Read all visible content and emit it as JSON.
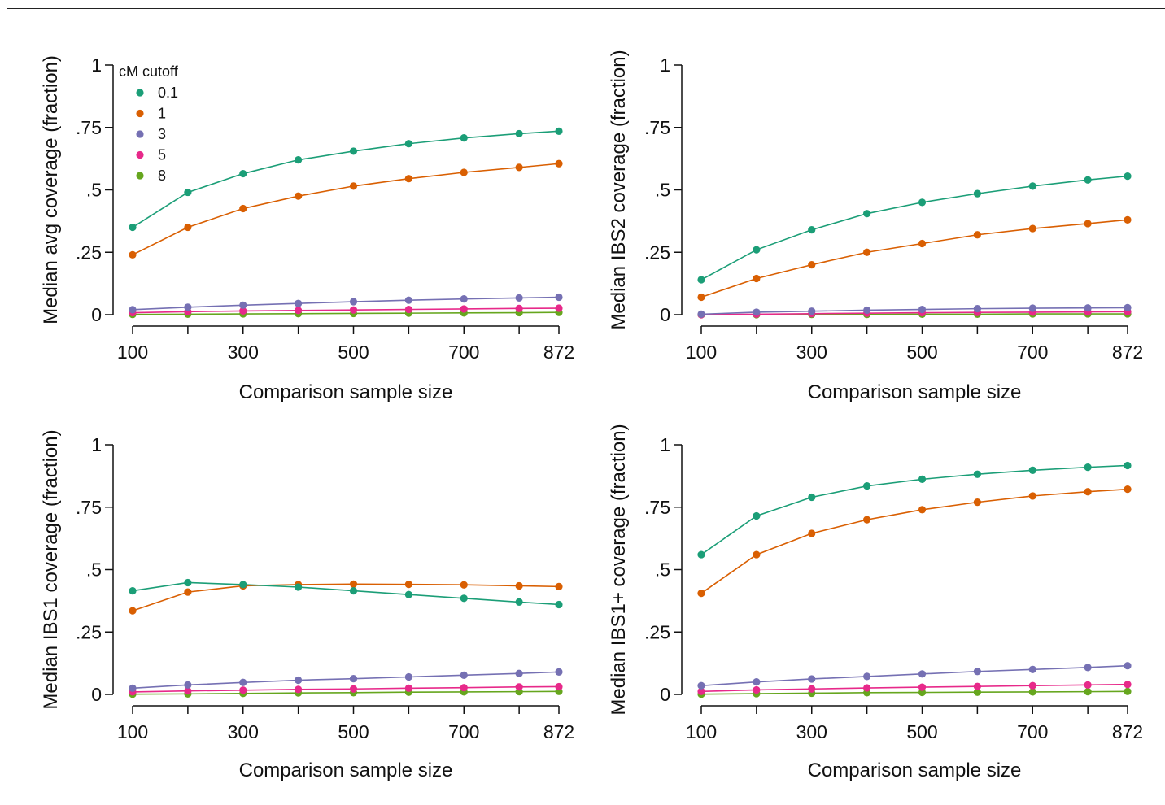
{
  "legend": {
    "title": "cM cutoff",
    "entries": [
      "0.1",
      "1",
      "3",
      "5",
      "8"
    ]
  },
  "colors": {
    "0.1": "#1b9e77",
    "1": "#d95f02",
    "3": "#7570b3",
    "5": "#e7298a",
    "8": "#66a61e"
  },
  "chart_data": [
    {
      "type": "line",
      "ylabel": "Median avg coverage (fraction)",
      "xlabel": "Comparison sample size",
      "x": [
        100,
        200,
        300,
        400,
        500,
        600,
        700,
        800,
        872
      ],
      "xticks": [
        "100",
        "300",
        "500",
        "700",
        "872"
      ],
      "yticks": [
        "0",
        ".25",
        ".5",
        ".75",
        "1"
      ],
      "ylim": [
        0,
        1
      ],
      "legend_position": "top-left",
      "series": [
        {
          "name": "0.1",
          "values": [
            0.35,
            0.49,
            0.565,
            0.62,
            0.655,
            0.685,
            0.708,
            0.725,
            0.735
          ]
        },
        {
          "name": "1",
          "values": [
            0.24,
            0.35,
            0.425,
            0.475,
            0.515,
            0.545,
            0.57,
            0.59,
            0.605
          ]
        },
        {
          "name": "3",
          "values": [
            0.02,
            0.03,
            0.038,
            0.045,
            0.052,
            0.058,
            0.063,
            0.067,
            0.07
          ]
        },
        {
          "name": "5",
          "values": [
            0.008,
            0.012,
            0.015,
            0.017,
            0.019,
            0.021,
            0.023,
            0.025,
            0.026
          ]
        },
        {
          "name": "8",
          "values": [
            0.001,
            0.002,
            0.003,
            0.004,
            0.005,
            0.006,
            0.007,
            0.008,
            0.009
          ]
        }
      ]
    },
    {
      "type": "line",
      "ylabel": "Median IBS2 coverage (fraction)",
      "xlabel": "Comparison sample size",
      "x": [
        100,
        200,
        300,
        400,
        500,
        600,
        700,
        800,
        872
      ],
      "xticks": [
        "100",
        "300",
        "500",
        "700",
        "872"
      ],
      "yticks": [
        "0",
        ".25",
        ".5",
        ".75",
        "1"
      ],
      "ylim": [
        0,
        1
      ],
      "series": [
        {
          "name": "0.1",
          "values": [
            0.14,
            0.26,
            0.34,
            0.405,
            0.45,
            0.485,
            0.515,
            0.54,
            0.555
          ]
        },
        {
          "name": "1",
          "values": [
            0.07,
            0.145,
            0.2,
            0.25,
            0.285,
            0.32,
            0.345,
            0.365,
            0.38
          ]
        },
        {
          "name": "3",
          "values": [
            0.002,
            0.01,
            0.014,
            0.018,
            0.021,
            0.024,
            0.026,
            0.027,
            0.028
          ]
        },
        {
          "name": "5",
          "values": [
            0.0,
            0.002,
            0.004,
            0.006,
            0.008,
            0.009,
            0.01,
            0.011,
            0.012
          ]
        },
        {
          "name": "8",
          "values": [
            0.0,
            0.0,
            0.001,
            0.001,
            0.002,
            0.002,
            0.003,
            0.003,
            0.003
          ]
        }
      ]
    },
    {
      "type": "line",
      "ylabel": "Median IBS1 coverage (fraction)",
      "xlabel": "Comparison sample size",
      "x": [
        100,
        200,
        300,
        400,
        500,
        600,
        700,
        800,
        872
      ],
      "xticks": [
        "100",
        "300",
        "500",
        "700",
        "872"
      ],
      "yticks": [
        "0",
        ".25",
        ".5",
        ".75",
        "1"
      ],
      "ylim": [
        0,
        1
      ],
      "series": [
        {
          "name": "0.1",
          "values": [
            0.415,
            0.448,
            0.44,
            0.43,
            0.415,
            0.4,
            0.385,
            0.37,
            0.36
          ]
        },
        {
          "name": "1",
          "values": [
            0.335,
            0.41,
            0.435,
            0.44,
            0.442,
            0.441,
            0.439,
            0.435,
            0.432
          ]
        },
        {
          "name": "3",
          "values": [
            0.025,
            0.038,
            0.048,
            0.057,
            0.063,
            0.07,
            0.077,
            0.084,
            0.09
          ]
        },
        {
          "name": "5",
          "values": [
            0.01,
            0.014,
            0.017,
            0.02,
            0.022,
            0.025,
            0.027,
            0.03,
            0.031
          ]
        },
        {
          "name": "8",
          "values": [
            0.001,
            0.002,
            0.004,
            0.006,
            0.007,
            0.009,
            0.01,
            0.011,
            0.012
          ]
        }
      ]
    },
    {
      "type": "line",
      "ylabel": "Median IBS1+ coverage (fraction)",
      "xlabel": "Comparison sample size",
      "x": [
        100,
        200,
        300,
        400,
        500,
        600,
        700,
        800,
        872
      ],
      "xticks": [
        "100",
        "300",
        "500",
        "700",
        "872"
      ],
      "yticks": [
        "0",
        ".25",
        ".5",
        ".75",
        "1"
      ],
      "ylim": [
        0,
        1
      ],
      "series": [
        {
          "name": "0.1",
          "values": [
            0.56,
            0.715,
            0.79,
            0.835,
            0.862,
            0.882,
            0.898,
            0.91,
            0.917
          ]
        },
        {
          "name": "1",
          "values": [
            0.405,
            0.56,
            0.645,
            0.7,
            0.74,
            0.77,
            0.795,
            0.812,
            0.822
          ]
        },
        {
          "name": "3",
          "values": [
            0.035,
            0.05,
            0.062,
            0.072,
            0.082,
            0.092,
            0.1,
            0.108,
            0.115
          ]
        },
        {
          "name": "5",
          "values": [
            0.012,
            0.018,
            0.022,
            0.026,
            0.029,
            0.032,
            0.035,
            0.038,
            0.04
          ]
        },
        {
          "name": "8",
          "values": [
            0.001,
            0.003,
            0.005,
            0.007,
            0.008,
            0.009,
            0.01,
            0.011,
            0.012
          ]
        }
      ]
    }
  ]
}
